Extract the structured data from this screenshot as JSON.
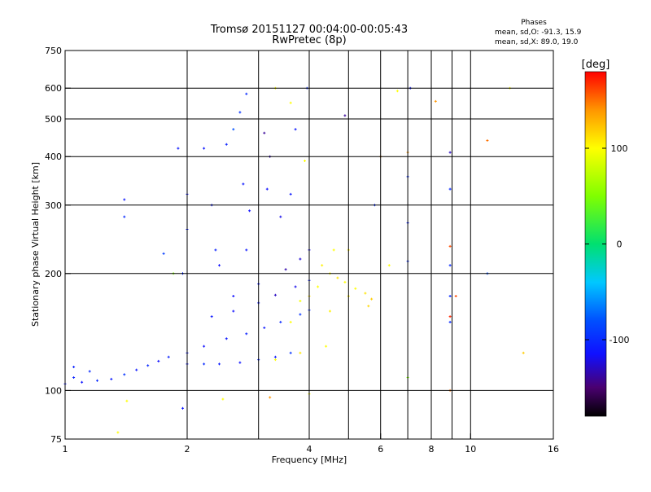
{
  "chart_data": {
    "type": "scatter",
    "title": "Tromsø 20151127 00:04:00-00:05:43",
    "subtitle": "RwPretec (8p)",
    "xlabel": "Frequency [MHz]",
    "ylabel": "Stationary phase Virtual Height [km]",
    "x_scale": "log",
    "y_scale": "log",
    "xlim": [
      1,
      16
    ],
    "ylim": [
      75,
      750
    ],
    "x_ticks": [
      1,
      2,
      4,
      6,
      8,
      10,
      16
    ],
    "x_tick_labels": [
      "1",
      "2",
      "4",
      "6",
      "8",
      "10",
      "16"
    ],
    "x_gridlines": [
      1,
      2,
      3,
      4,
      5,
      6,
      7,
      8,
      9,
      10
    ],
    "y_ticks": [
      75,
      100,
      200,
      300,
      400,
      500,
      600,
      750
    ],
    "y_tick_labels": [
      "75",
      "100",
      "200",
      "300",
      "400",
      "500",
      "600",
      "750"
    ],
    "y_gridlines": [
      100,
      200,
      300,
      400,
      500,
      600
    ],
    "grid": true,
    "phase_box": {
      "title": "Phases",
      "line_o": "mean, sd,O: -91.3, 15.9",
      "line_x": "mean, sd,X:  89.0, 19.0"
    },
    "colorbar": {
      "label": "[deg]",
      "range": [
        -180,
        180
      ],
      "ticks": [
        100,
        0,
        -100
      ],
      "tick_labels": [
        "100",
        "0",
        "-100"
      ],
      "stops": [
        {
          "v": -180,
          "color": "#000000"
        },
        {
          "v": -150,
          "color": "#4a0070"
        },
        {
          "v": -115,
          "color": "#1010ff"
        },
        {
          "v": -80,
          "color": "#0050ff"
        },
        {
          "v": -40,
          "color": "#00c8ff"
        },
        {
          "v": 0,
          "color": "#00e070"
        },
        {
          "v": 50,
          "color": "#80ff00"
        },
        {
          "v": 100,
          "color": "#ffff00"
        },
        {
          "v": 140,
          "color": "#ff9600"
        },
        {
          "v": 180,
          "color": "#ff0000"
        }
      ]
    },
    "series": [
      {
        "values": [
          {
            "x": 1.0,
            "y": 104,
            "c": -110
          },
          {
            "x": 1.05,
            "y": 108,
            "c": -105
          },
          {
            "x": 1.1,
            "y": 105,
            "c": -112
          },
          {
            "x": 1.2,
            "y": 106,
            "c": -100
          },
          {
            "x": 1.3,
            "y": 107,
            "c": -108
          },
          {
            "x": 1.4,
            "y": 110,
            "c": -95
          },
          {
            "x": 1.5,
            "y": 113,
            "c": -110
          },
          {
            "x": 1.6,
            "y": 116,
            "c": -100
          },
          {
            "x": 1.7,
            "y": 119,
            "c": -115
          },
          {
            "x": 1.8,
            "y": 122,
            "c": -105
          },
          {
            "x": 2.0,
            "y": 117,
            "c": -110
          },
          {
            "x": 2.2,
            "y": 117,
            "c": -100
          },
          {
            "x": 2.4,
            "y": 117,
            "c": -108
          },
          {
            "x": 2.7,
            "y": 118,
            "c": -112
          },
          {
            "x": 3.0,
            "y": 120,
            "c": -100
          },
          {
            "x": 3.3,
            "y": 122,
            "c": -110
          },
          {
            "x": 3.6,
            "y": 125,
            "c": -95
          },
          {
            "x": 1.05,
            "y": 115,
            "c": -105
          },
          {
            "x": 1.15,
            "y": 112,
            "c": -100
          },
          {
            "x": 2.0,
            "y": 125,
            "c": -110
          },
          {
            "x": 2.2,
            "y": 130,
            "c": -115
          },
          {
            "x": 2.5,
            "y": 136,
            "c": -110
          },
          {
            "x": 2.8,
            "y": 140,
            "c": -105
          },
          {
            "x": 3.1,
            "y": 145,
            "c": -110
          },
          {
            "x": 3.4,
            "y": 150,
            "c": -100
          },
          {
            "x": 3.8,
            "y": 157,
            "c": -95
          },
          {
            "x": 4.0,
            "y": 161,
            "c": -100
          },
          {
            "x": 2.3,
            "y": 155,
            "c": -110
          },
          {
            "x": 2.6,
            "y": 160,
            "c": -115
          },
          {
            "x": 3.0,
            "y": 168,
            "c": -110
          },
          {
            "x": 3.3,
            "y": 176,
            "c": -130
          },
          {
            "x": 3.7,
            "y": 185,
            "c": -120
          },
          {
            "x": 4.0,
            "y": 192,
            "c": -105
          },
          {
            "x": 2.6,
            "y": 175,
            "c": -115
          },
          {
            "x": 3.0,
            "y": 188,
            "c": -110
          },
          {
            "x": 3.5,
            "y": 205,
            "c": -135
          },
          {
            "x": 3.8,
            "y": 218,
            "c": -125
          },
          {
            "x": 4.0,
            "y": 230,
            "c": -120
          },
          {
            "x": 2.0,
            "y": 320,
            "c": -110
          },
          {
            "x": 2.0,
            "y": 260,
            "c": -105
          },
          {
            "x": 1.95,
            "y": 200,
            "c": -100
          },
          {
            "x": 1.9,
            "y": 420,
            "c": -110
          },
          {
            "x": 1.75,
            "y": 225,
            "c": -90
          },
          {
            "x": 1.85,
            "y": 200,
            "c": 50
          },
          {
            "x": 2.2,
            "y": 420,
            "c": -110
          },
          {
            "x": 2.3,
            "y": 300,
            "c": -110
          },
          {
            "x": 2.35,
            "y": 230,
            "c": -105
          },
          {
            "x": 2.4,
            "y": 210,
            "c": -115
          },
          {
            "x": 2.5,
            "y": 430,
            "c": -105
          },
          {
            "x": 2.6,
            "y": 470,
            "c": -80
          },
          {
            "x": 2.7,
            "y": 520,
            "c": -95
          },
          {
            "x": 2.8,
            "y": 580,
            "c": -100
          },
          {
            "x": 2.75,
            "y": 340,
            "c": -110
          },
          {
            "x": 2.85,
            "y": 290,
            "c": -115
          },
          {
            "x": 2.8,
            "y": 230,
            "c": -110
          },
          {
            "x": 3.1,
            "y": 460,
            "c": -140
          },
          {
            "x": 3.2,
            "y": 400,
            "c": -135
          },
          {
            "x": 3.3,
            "y": 600,
            "c": 100
          },
          {
            "x": 3.15,
            "y": 330,
            "c": -115
          },
          {
            "x": 3.4,
            "y": 280,
            "c": -120
          },
          {
            "x": 3.6,
            "y": 550,
            "c": 100
          },
          {
            "x": 3.6,
            "y": 320,
            "c": -110
          },
          {
            "x": 3.7,
            "y": 470,
            "c": -110
          },
          {
            "x": 3.9,
            "y": 390,
            "c": 100
          },
          {
            "x": 3.95,
            "y": 600,
            "c": -100
          },
          {
            "x": 3.3,
            "y": 120,
            "c": 100
          },
          {
            "x": 3.6,
            "y": 150,
            "c": 100
          },
          {
            "x": 3.8,
            "y": 170,
            "c": 95
          },
          {
            "x": 4.0,
            "y": 175,
            "c": 110
          },
          {
            "x": 4.2,
            "y": 185,
            "c": 100
          },
          {
            "x": 4.3,
            "y": 210,
            "c": 105
          },
          {
            "x": 4.5,
            "y": 200,
            "c": 100
          },
          {
            "x": 4.7,
            "y": 195,
            "c": 110
          },
          {
            "x": 4.9,
            "y": 190,
            "c": 100
          },
          {
            "x": 5.0,
            "y": 175,
            "c": 105
          },
          {
            "x": 5.2,
            "y": 183,
            "c": 100
          },
          {
            "x": 5.5,
            "y": 178,
            "c": 110
          },
          {
            "x": 5.7,
            "y": 172,
            "c": 120
          },
          {
            "x": 5.6,
            "y": 165,
            "c": 115
          },
          {
            "x": 4.5,
            "y": 160,
            "c": 105
          },
          {
            "x": 4.4,
            "y": 130,
            "c": 100
          },
          {
            "x": 3.8,
            "y": 125,
            "c": 110
          },
          {
            "x": 4.6,
            "y": 230,
            "c": 100
          },
          {
            "x": 5.0,
            "y": 230,
            "c": 105
          },
          {
            "x": 1.4,
            "y": 310,
            "c": -110
          },
          {
            "x": 1.4,
            "y": 280,
            "c": -100
          },
          {
            "x": 1.42,
            "y": 94,
            "c": 100
          },
          {
            "x": 1.35,
            "y": 78,
            "c": 100
          },
          {
            "x": 1.95,
            "y": 90,
            "c": -110
          },
          {
            "x": 2.45,
            "y": 95,
            "c": 100
          },
          {
            "x": 3.2,
            "y": 96,
            "c": 140
          },
          {
            "x": 4.0,
            "y": 98,
            "c": 100
          },
          {
            "x": 4.9,
            "y": 510,
            "c": -140
          },
          {
            "x": 6.6,
            "y": 590,
            "c": 100
          },
          {
            "x": 7.1,
            "y": 600,
            "c": -110
          },
          {
            "x": 8.2,
            "y": 555,
            "c": 140
          },
          {
            "x": 7.0,
            "y": 410,
            "c": 140
          },
          {
            "x": 7.0,
            "y": 355,
            "c": -100
          },
          {
            "x": 7.0,
            "y": 270,
            "c": -105
          },
          {
            "x": 7.0,
            "y": 215,
            "c": -100
          },
          {
            "x": 7.0,
            "y": 108,
            "c": 50
          },
          {
            "x": 6.3,
            "y": 210,
            "c": 100
          },
          {
            "x": 8.9,
            "y": 410,
            "c": -130
          },
          {
            "x": 8.9,
            "y": 330,
            "c": -100
          },
          {
            "x": 8.9,
            "y": 235,
            "c": 160
          },
          {
            "x": 8.9,
            "y": 210,
            "c": -100
          },
          {
            "x": 8.9,
            "y": 175,
            "c": -100
          },
          {
            "x": 9.2,
            "y": 175,
            "c": 160
          },
          {
            "x": 8.9,
            "y": 155,
            "c": 170
          },
          {
            "x": 8.9,
            "y": 150,
            "c": -100
          },
          {
            "x": 8.9,
            "y": 100,
            "c": 150
          },
          {
            "x": 11.0,
            "y": 440,
            "c": 150
          },
          {
            "x": 11.0,
            "y": 200,
            "c": -80
          },
          {
            "x": 12.5,
            "y": 600,
            "c": 100
          },
          {
            "x": 13.5,
            "y": 125,
            "c": 120
          },
          {
            "x": 5.8,
            "y": 300,
            "c": -100
          },
          {
            "x": 6.0,
            "y": 400,
            "c": 140
          }
        ]
      }
    ]
  }
}
